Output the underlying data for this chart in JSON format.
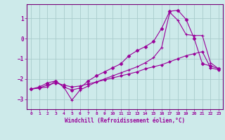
{
  "xlabel": "Windchill (Refroidissement éolien,°C)",
  "bg_color": "#cdeaea",
  "grid_color": "#a8cccc",
  "line_color": "#990099",
  "xlim": [
    -0.5,
    23.5
  ],
  "ylim": [
    -3.5,
    1.7
  ],
  "xticks": [
    0,
    1,
    2,
    3,
    4,
    5,
    6,
    7,
    8,
    9,
    10,
    11,
    12,
    13,
    14,
    15,
    16,
    17,
    18,
    19,
    20,
    21,
    22,
    23
  ],
  "yticks": [
    -3,
    -2,
    -1,
    0,
    1
  ],
  "line1_x": [
    0,
    1,
    2,
    3,
    4,
    5,
    6,
    7,
    8,
    9,
    10,
    11,
    12,
    13,
    14,
    15,
    16,
    17,
    18,
    19,
    20,
    21,
    22,
    23
  ],
  "line1_y": [
    -2.5,
    -2.4,
    -2.2,
    -2.1,
    -2.4,
    -2.55,
    -2.45,
    -2.1,
    -1.85,
    -1.65,
    -1.45,
    -1.25,
    -0.85,
    -0.6,
    -0.4,
    -0.15,
    0.5,
    1.35,
    1.4,
    0.95,
    0.0,
    -1.25,
    -1.35,
    -1.5
  ],
  "line2_x": [
    0,
    1,
    2,
    3,
    4,
    5,
    6,
    7,
    8,
    9,
    10,
    11,
    12,
    13,
    14,
    15,
    16,
    17,
    18,
    19,
    20,
    21,
    22,
    23
  ],
  "line2_y": [
    -2.5,
    -2.45,
    -2.4,
    -2.1,
    -2.4,
    -3.05,
    -2.55,
    -2.35,
    -2.15,
    -2.0,
    -1.85,
    -1.7,
    -1.55,
    -1.4,
    -1.2,
    -0.95,
    -0.45,
    1.3,
    0.9,
    0.2,
    0.15,
    0.15,
    -1.2,
    -1.5
  ],
  "line3_x": [
    0,
    1,
    2,
    3,
    4,
    5,
    6,
    7,
    8,
    9,
    10,
    11,
    12,
    13,
    14,
    15,
    16,
    17,
    18,
    19,
    20,
    21,
    22,
    23
  ],
  "line3_y": [
    -2.5,
    -2.45,
    -2.3,
    -2.2,
    -2.3,
    -2.4,
    -2.35,
    -2.25,
    -2.15,
    -2.05,
    -1.95,
    -1.85,
    -1.75,
    -1.65,
    -1.5,
    -1.4,
    -1.3,
    -1.15,
    -1.0,
    -0.85,
    -0.75,
    -0.65,
    -1.45,
    -1.55
  ]
}
